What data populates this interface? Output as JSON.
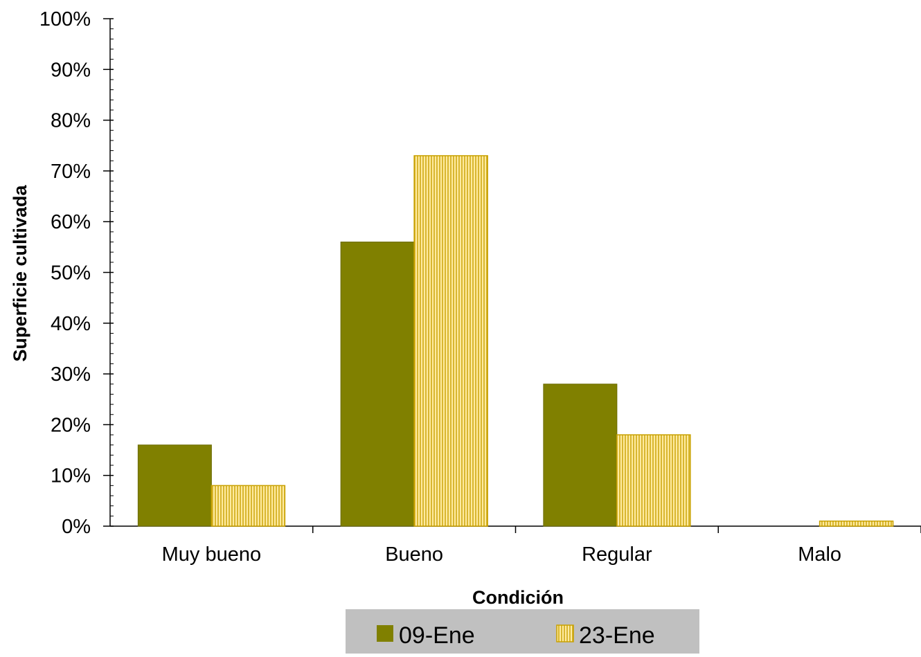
{
  "chart_data": {
    "type": "bar",
    "categories": [
      "Muy bueno",
      "Bueno",
      "Regular",
      "Malo"
    ],
    "series": [
      {
        "name": "09-Ene",
        "values": [
          16,
          56,
          28,
          0
        ],
        "color": "#808000",
        "pattern": "solid"
      },
      {
        "name": "23-Ene",
        "values": [
          8,
          73,
          18,
          1
        ],
        "color": "#FFEBA0",
        "stroke": "#C8A000",
        "pattern": "vertical-stripes"
      }
    ],
    "xlabel": "Condición",
    "ylabel": "Superficie cultivada",
    "ylim": [
      0,
      100
    ],
    "y_ticks": [
      "0%",
      "10%",
      "20%",
      "30%",
      "40%",
      "50%",
      "60%",
      "70%",
      "80%",
      "90%",
      "100%"
    ],
    "y_unit": "%",
    "grid": false,
    "legend_position": "bottom",
    "legend_background": "#C0C0C0"
  }
}
